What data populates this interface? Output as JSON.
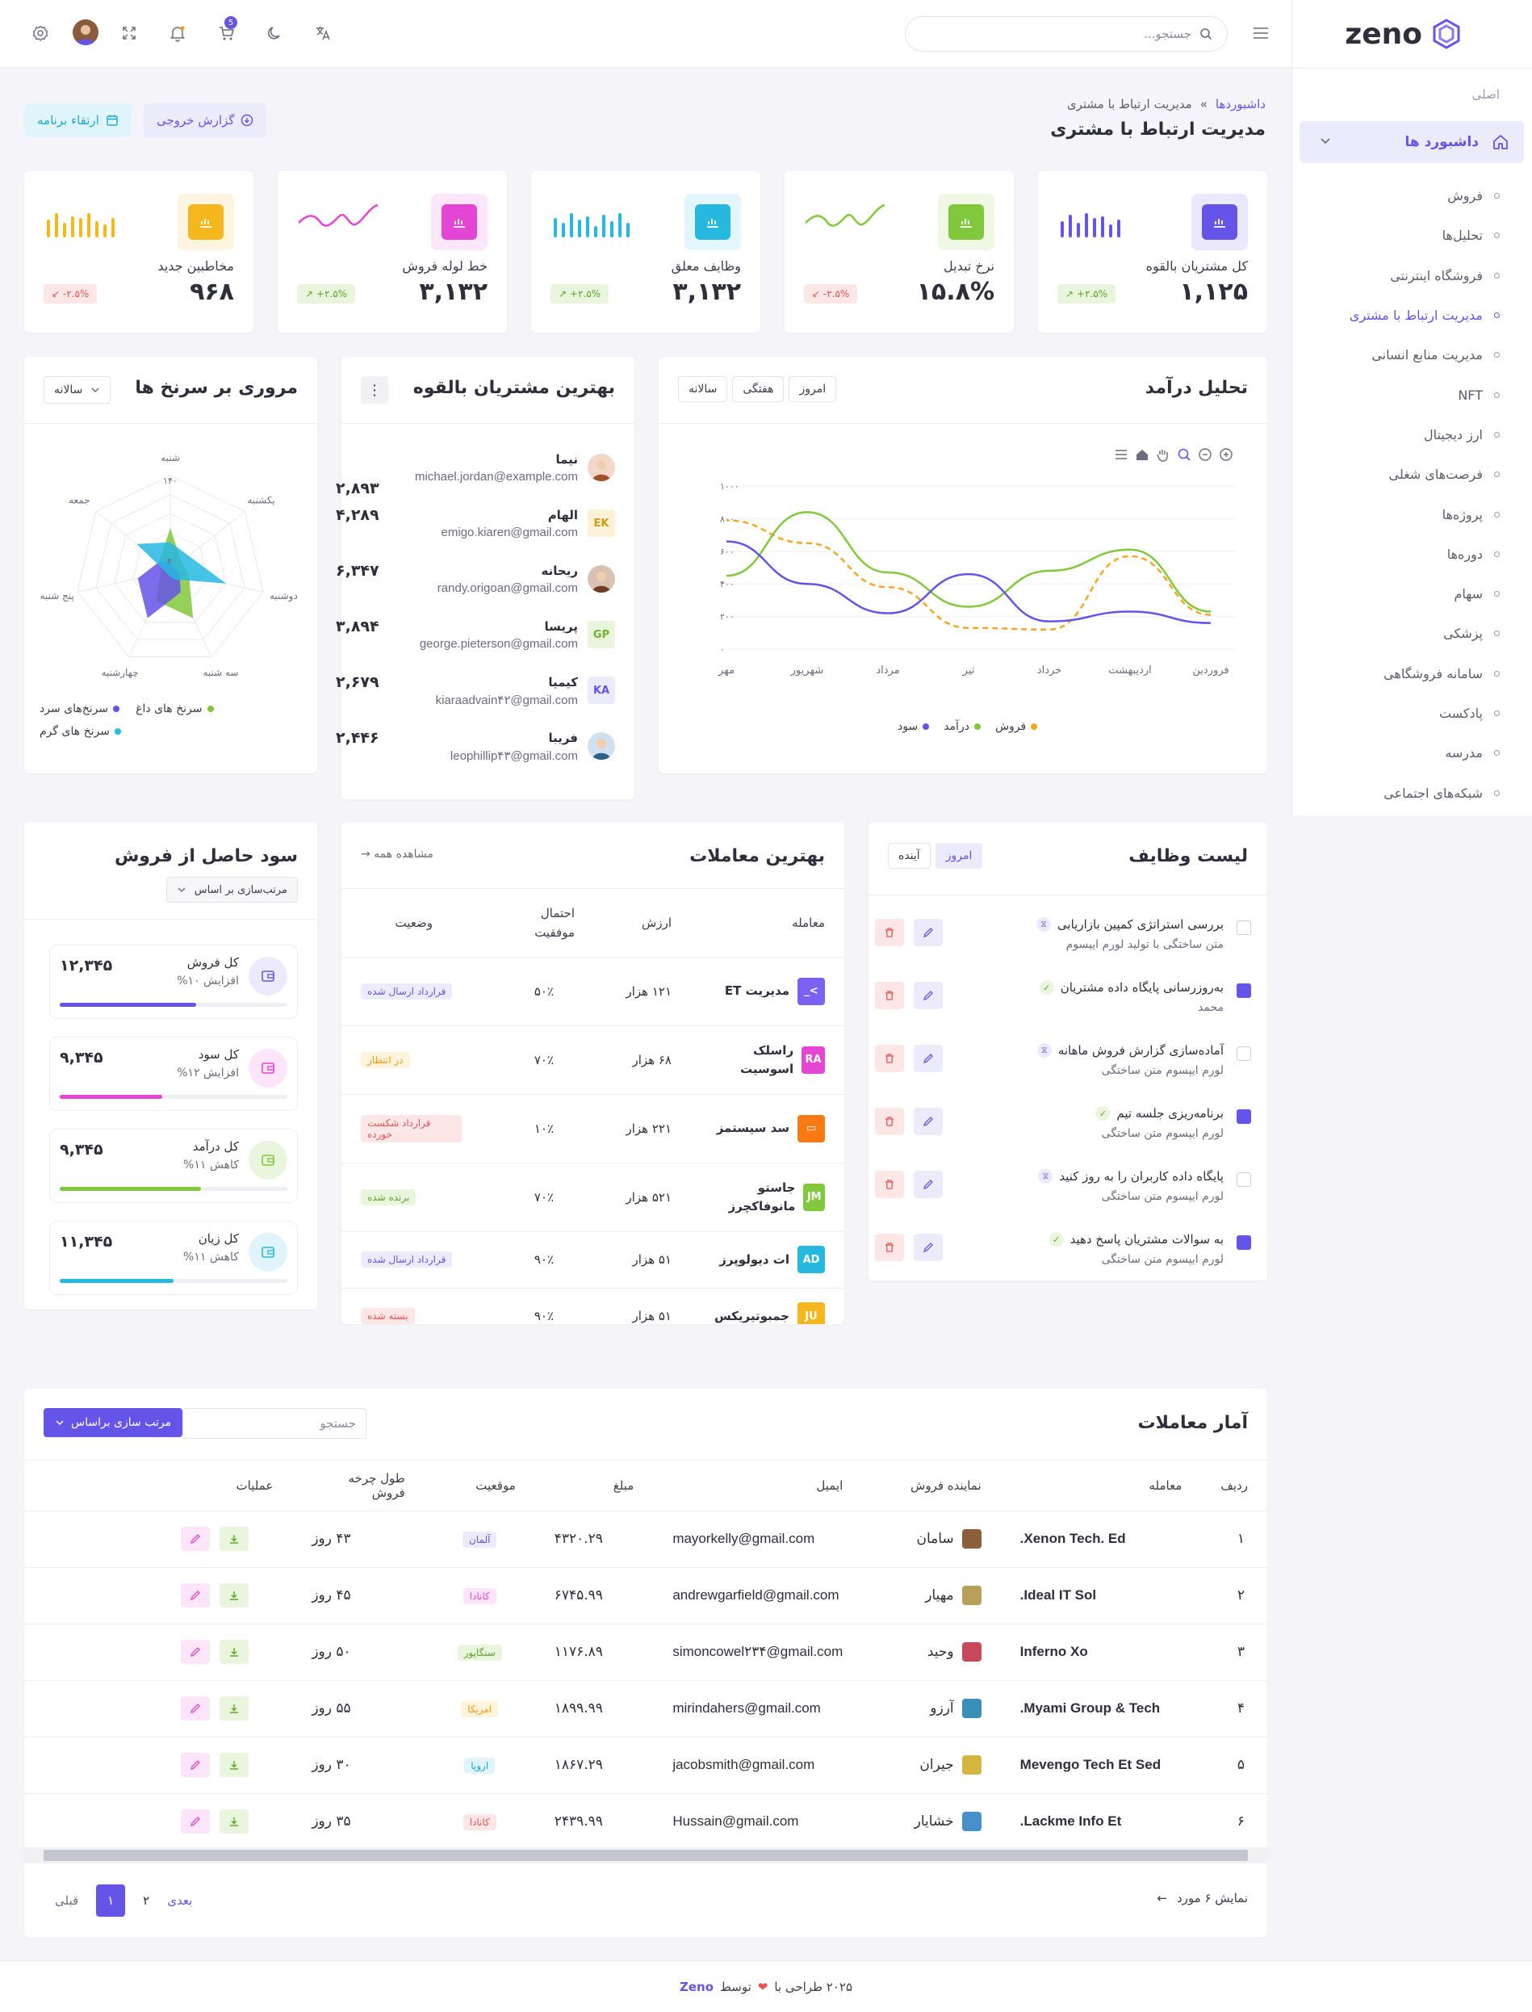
{
  "brand": {
    "name": "zeno",
    "accent": "#6454e8"
  },
  "topbar": {
    "search_placeholder": "جستجو...",
    "cart_count": "5"
  },
  "sidebar": {
    "section": "اصلی",
    "active": "داشبورد ها",
    "items": [
      "فروش",
      "تحلیل‌ها",
      "فروشگاه اینترنتی",
      "مدیریت ارتباط با مشتری",
      "مدیریت منابع انسانی",
      "NFT",
      "ارز دیجیتال",
      "فرصت‌های شغلی",
      "پروژه‌ها",
      "دوره‌ها",
      "سهام",
      "پزشکی",
      "سامانه فروشگاهی",
      "پادکست",
      "مدرسه",
      "شبکه‌های اجتماعی"
    ]
  },
  "breadcrumb": {
    "home": "داشبوردها",
    "sep": "»",
    "current": "مدیریت ارتباط با مشتری"
  },
  "page_title": "مدیریت ارتباط با مشتری",
  "actions": {
    "export": "گزارش خروجی",
    "upgrade": "ارتقاء برنامه"
  },
  "stats": [
    {
      "title": "کل مشتریان بالقوه",
      "value": "۱,۱۲۵",
      "badge": "۲.۵%+ ↗",
      "color": "#6454e8",
      "up": true
    },
    {
      "title": "نرخ تبدیل",
      "value": "۱۵.۸%",
      "badge": "۲.۵%- ↙",
      "color": "#82c83c",
      "up": false
    },
    {
      "title": "وظایف معلق",
      "value": "۳,۱۳۲",
      "badge": "۲.۵%+ ↗",
      "color": "#26b9e0",
      "up": true
    },
    {
      "title": "خط لوله فروش",
      "value": "۳,۱۳۲",
      "badge": "۲.۵%+ ↗",
      "color": "#e545d5",
      "up": true
    },
    {
      "title": "مخاطبین جدید",
      "value": "۹۶۸",
      "badge": "۲.۵%- ↙",
      "color": "#f5b71e",
      "up": false
    }
  ],
  "revenue": {
    "title": "تحلیل درآمد",
    "tabs": [
      "امروز",
      "هفتگی",
      "سالانه"
    ],
    "legend": [
      "فروش",
      "درآمد",
      "سود"
    ]
  },
  "chart_data": {
    "type": "line",
    "categories": [
      "فروردین",
      "اردیبهشت",
      "خرداد",
      "تیر",
      "مرداد",
      "شهریور",
      "مهر"
    ],
    "y_ticks": [
      "۰",
      "۲۰۰",
      "۴۰۰",
      "۶۰۰",
      "۸۰۰",
      "۱۰۰۰"
    ],
    "ylim": [
      0,
      1000
    ],
    "series": [
      {
        "name": "فروش",
        "color": "#f5a623",
        "values": [
          210,
          570,
          120,
          130,
          380,
          650,
          790
        ]
      },
      {
        "name": "درآمد",
        "color": "#82c83c",
        "values": [
          230,
          610,
          480,
          260,
          470,
          840,
          450
        ]
      },
      {
        "name": "سود",
        "color": "#6454e8",
        "values": [
          160,
          230,
          170,
          460,
          220,
          400,
          660
        ]
      }
    ]
  },
  "customers": {
    "title": "بهترین مشتریان بالقوه",
    "list": [
      {
        "name": "نیما",
        "email": "michael.jordan@example.com",
        "amount": "۲,۸۹۳",
        "initials": "",
        "bg": "#f3d7c8",
        "fg": "#a0502a"
      },
      {
        "name": "الهام",
        "email": "emigo.kiaren@gmail.com",
        "amount": "۴,۲۸۹",
        "initials": "EK",
        "bg": "#fdf1d8",
        "fg": "#d69a13"
      },
      {
        "name": "ریحانه",
        "email": "randy.origoan@gmail.com",
        "amount": "۶,۳۴۷",
        "initials": "",
        "bg": "#d9c2b2",
        "fg": "#6d3d22"
      },
      {
        "name": "پریسا",
        "email": "george.pieterson@gmail.com",
        "amount": "۳,۸۹۴",
        "initials": "GP",
        "bg": "#e9f6dd",
        "fg": "#6fb431"
      },
      {
        "name": "کیمیا",
        "email": "kiaraadvain۴۲@gmail.com",
        "amount": "۲,۶۷۹",
        "initials": "KA",
        "bg": "#ecebfb",
        "fg": "#6454e8"
      },
      {
        "name": "فریبا",
        "email": "leophillip۴۳@gmail.com",
        "amount": "۲,۴۴۶",
        "initials": "",
        "bg": "#cfe1f0",
        "fg": "#2b5f8a"
      }
    ]
  },
  "radar": {
    "title": "مروری بر سرنخ ها",
    "select": "سالانه",
    "axes": [
      "شنبه",
      "یکشنبه",
      "دوشنبه",
      "سه شنبه",
      "چهارشنبه",
      "پنج شنبه",
      "جمعه"
    ],
    "max_label": "۱۴۰",
    "mid_label": "۴۰",
    "legend": [
      "سرنخ های داغ",
      "سرنخ‌های سرد",
      "سرنخ های گرم"
    ]
  },
  "tasks": {
    "title": "لیست وظایف",
    "tabs": [
      "امروز",
      "آینده"
    ],
    "items": [
      {
        "title": "بررسی استراتژی کمپین بازاریابی",
        "sub": "متن ساختگی با تولید لورم ایپسوم",
        "done": false
      },
      {
        "title": "به‌روزرسانی پایگاه داده مشتریان",
        "sub": "محمد",
        "done": true
      },
      {
        "title": "آماده‌سازی گزارش فروش ماهانه",
        "sub": "لورم ایپسوم متن ساختگی",
        "done": false
      },
      {
        "title": "برنامه‌ریزی جلسه تیم",
        "sub": "لورم ایپسوم متن ساختگی",
        "done": true
      },
      {
        "title": "پایگاه داده کاربران را به روز کنید",
        "sub": "لورم ایپسوم متن ساختگی",
        "done": false
      },
      {
        "title": "به سوالات مشتریان پاسخ دهید",
        "sub": "لورم ایپسوم متن ساختگی",
        "done": true
      }
    ]
  },
  "deals": {
    "title": "بهترین معاملات",
    "view_all": "مشاهده همه →",
    "headers": [
      "معامله",
      "ارزش",
      "احتمال موفقیت",
      "وضعیت"
    ],
    "rows": [
      {
        "name": "مدیریت ET",
        "value": "۱۲۱ هزار",
        "prob": "۵۰٪",
        "status": "قرارداد ارسال شده",
        "icon": ">_",
        "ic": "#7b61f0",
        "sbg": "#ecebfb",
        "sfg": "#6454e8"
      },
      {
        "name": "راسلک اسوسیت",
        "value": "۶۸ هزار",
        "prob": "۷۰٪",
        "status": "در انتظار",
        "icon": "RA",
        "ic": "#e545d5",
        "sbg": "#fff3dc",
        "sfg": "#f19b13"
      },
      {
        "name": "سد سیستمز",
        "value": "۲۲۱ هزار",
        "prob": "۱۰٪",
        "status": "قرارداد شکست خورده",
        "icon": "▭",
        "ic": "#f97a12",
        "sbg": "#fde6e6",
        "sfg": "#e55353"
      },
      {
        "name": "جاستو مانوفاکچرز",
        "value": "۵۲۱ هزار",
        "prob": "۷۰٪",
        "status": "برنده شده",
        "icon": "JM",
        "ic": "#82c83c",
        "sbg": "#e9f6dd",
        "sfg": "#5ea52a"
      },
      {
        "name": "ات دیولوپرز",
        "value": "۵۱ هزار",
        "prob": "۹۰٪",
        "status": "قرارداد ارسال شده",
        "icon": "AD",
        "ic": "#26b9e0",
        "sbg": "#ecebfb",
        "sfg": "#6454e8"
      },
      {
        "name": "جمبوتیریکس",
        "value": "۵۱ هزار",
        "prob": "۹۰٪",
        "status": "بسته شده",
        "icon": "JU",
        "ic": "#f5b71e",
        "sbg": "#fde6e6",
        "sfg": "#e55353"
      }
    ]
  },
  "profit": {
    "title": "سود حاصل از فروش",
    "sort": "مرتب‌سازی بر اساس",
    "items": [
      {
        "title": "کل فروش",
        "sub": "افزایش ۱۰%",
        "value": "۱۲,۳۴۵",
        "color": "#6454e8",
        "bg": "#ecebfb",
        "pct": 0.6
      },
      {
        "title": "کل سود",
        "sub": "افزایش ۱۲%",
        "value": "۹,۳۴۵",
        "color": "#e545d5",
        "bg": "#fce4f9",
        "pct": 0.45
      },
      {
        "title": "کل درآمد",
        "sub": "کاهش ۱۱%",
        "value": "۹,۳۴۵",
        "color": "#82c83c",
        "bg": "#e9f6dd",
        "pct": 0.62
      },
      {
        "title": "کل زیان",
        "sub": "کاهش ۱۱%",
        "value": "۱۱,۳۴۵",
        "color": "#26b9e0",
        "bg": "#e0f5fb",
        "pct": 0.5
      }
    ]
  },
  "deal_stats": {
    "title": "آمار معاملات",
    "search_placeholder": "جستجو",
    "sort_button": "مرتب سازی براساس",
    "headers": [
      "ردیف",
      "معامله",
      "نماینده فروش",
      "ایمیل",
      "مبلغ",
      "موقعیت",
      "طول چرخه فروش",
      "عملیات"
    ],
    "rows": [
      {
        "n": "۱",
        "deal": "Xenon Tech. Ed.",
        "rep": "سامان",
        "email": "mayorkelly@gmail.com",
        "amount": "۴۳۲۰.۲۹",
        "loc": "آلمان",
        "lbg": "#ecebfb",
        "lfg": "#6454e8",
        "cycle": "۴۳ روز",
        "av": "#8b5e3c"
      },
      {
        "n": "۲",
        "deal": "Ideal IT Sol.",
        "rep": "مهیار",
        "email": "andrewgarfield@gmail.com",
        "amount": "۶۷۴۵.۹۹",
        "loc": "کانادا",
        "lbg": "#fce4f9",
        "lfg": "#e545d5",
        "cycle": "۴۵ روز",
        "av": "#b9a05a"
      },
      {
        "n": "۳",
        "deal": "Inferno Xo",
        "rep": "وحید",
        "email": "simoncowel۲۳۴@gmail.com",
        "amount": "۱۱۷۶.۸۹",
        "loc": "سنگاپور",
        "lbg": "#e9f6dd",
        "lfg": "#5ea52a",
        "cycle": "۵۰ روز",
        "av": "#c84a5a"
      },
      {
        "n": "۴",
        "deal": "Myami Group & Tech.",
        "rep": "آرزو",
        "email": "mirindahers@gmail.com",
        "amount": "۱۸۹۹.۹۹",
        "loc": "امریکا",
        "lbg": "#fff3dc",
        "lfg": "#f19b13",
        "cycle": "۵۵ روز",
        "av": "#3a8fb7"
      },
      {
        "n": "۵",
        "deal": "Mevengo Tech Et Sed",
        "rep": "جیران",
        "email": "jacobsmith@gmail.com",
        "amount": "۱۸۶۷.۲۹",
        "loc": "اروپا",
        "lbg": "#e0f5fb",
        "lfg": "#1ea8cf",
        "cycle": "۳۰ روز",
        "av": "#d4b540"
      },
      {
        "n": "۶",
        "deal": "Lackme Info Et.",
        "rep": "خشایار",
        "email": "Hussain@gmail.com",
        "amount": "۲۴۳۹.۹۹",
        "loc": "کانادا",
        "lbg": "#fde6e6",
        "lfg": "#e55353",
        "cycle": "۳۵ روز",
        "av": "#4a90c8"
      }
    ],
    "showing": "نمایش ۶ مورد",
    "prev": "قبلی",
    "page1": "۱",
    "page2": "۲",
    "next": "بعدی"
  },
  "footer": {
    "text": "۲۰۲۵ طراحی با",
    "by": "توسط",
    "brand": "Zeno"
  }
}
